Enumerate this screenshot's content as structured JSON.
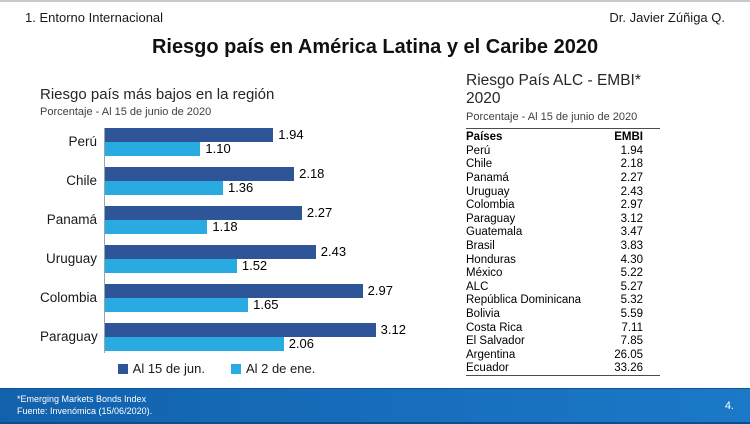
{
  "header": {
    "section": "1. Entorno Internacional",
    "author": "Dr. Javier Zúñiga Q."
  },
  "title": "Riesgo país en América Latina y el Caribe 2020",
  "chart_data": {
    "type": "bar",
    "orientation": "horizontal",
    "title": "Riesgo país más bajos en la región",
    "subtitle": "Porcentaje - Al 15 de junio de 2020",
    "categories": [
      "Perú",
      "Chile",
      "Panamá",
      "Uruguay",
      "Colombia",
      "Paraguay"
    ],
    "series": [
      {
        "name": "Al 15 de jun.",
        "color": "#2E5597",
        "values": [
          1.94,
          2.18,
          2.27,
          2.43,
          2.97,
          3.12
        ]
      },
      {
        "name": "Al 2 de ene.",
        "color": "#29ABE2",
        "values": [
          1.1,
          1.36,
          1.18,
          1.52,
          1.65,
          2.06
        ]
      }
    ],
    "xlim": [
      0,
      4
    ],
    "grid": false,
    "value_labels": true,
    "legend_position": "bottom"
  },
  "table": {
    "title": "Riesgo País ALC - EMBI* 2020",
    "subtitle": "Porcentaje - Al 15 de junio de 2020",
    "columns": [
      "Países",
      "EMBI"
    ],
    "rows": [
      [
        "Perú",
        "1.94"
      ],
      [
        "Chile",
        "2.18"
      ],
      [
        "Panamá",
        "2.27"
      ],
      [
        "Uruguay",
        "2.43"
      ],
      [
        "Colombia",
        "2.97"
      ],
      [
        "Paraguay",
        "3.12"
      ],
      [
        "Guatemala",
        "3.47"
      ],
      [
        "Brasil",
        "3.83"
      ],
      [
        "Honduras",
        "4.30"
      ],
      [
        "México",
        "5.22"
      ],
      [
        "ALC",
        "5.27"
      ],
      [
        "República Dominicana",
        "5.32"
      ],
      [
        "Bolivia",
        "5.59"
      ],
      [
        "Costa Rica",
        "7.11"
      ],
      [
        "El Salvador",
        "7.85"
      ],
      [
        "Argentina",
        "26.05"
      ],
      [
        "Ecuador",
        "33.26"
      ]
    ]
  },
  "footer": {
    "note": "*Emerging Markets Bonds Index",
    "source": "Fuente: Invenómica (15/06/2020).",
    "page": "4.",
    "bar_color_left": "#1261AC",
    "bar_color_right": "#1B79C8"
  }
}
